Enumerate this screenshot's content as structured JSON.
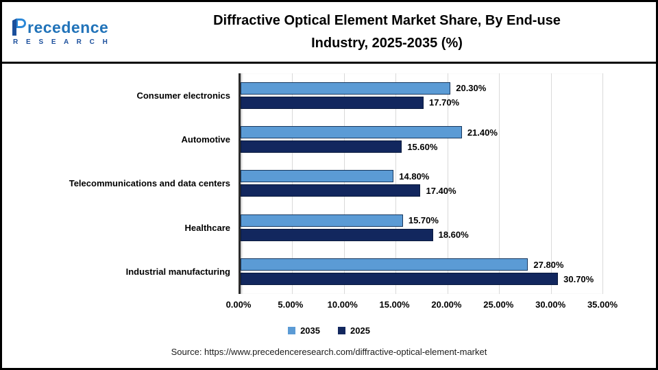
{
  "logo": {
    "brand_rest": "recedence",
    "subtext": "R E S E A R C H"
  },
  "header": {
    "title_line1": "Diffractive Optical Element Market Share, By End-use",
    "title_line2": "Industry, 2025-2035 (%)"
  },
  "chart_data": {
    "type": "bar",
    "orientation": "horizontal",
    "title": "Diffractive Optical Element Market Share, By End-use Industry, 2025-2035 (%)",
    "categories": [
      "Consumer electronics",
      "Automotive",
      "Telecommunications and data centers",
      "Healthcare",
      "Industrial manufacturing"
    ],
    "series": [
      {
        "name": "2035",
        "color": "#5B9BD5",
        "border": "#17375E",
        "values": [
          20.3,
          21.4,
          14.8,
          15.7,
          27.8
        ]
      },
      {
        "name": "2025",
        "color": "#12275E",
        "border": "#0A1A3D",
        "values": [
          17.7,
          15.6,
          17.4,
          18.6,
          30.7
        ]
      }
    ],
    "xlim": [
      0,
      35
    ],
    "tick_labels": [
      "0.00%",
      "5.00%",
      "10.00%",
      "15.00%",
      "20.00%",
      "25.00%",
      "30.00%",
      "35.00%"
    ],
    "grid": true,
    "legend_position": "bottom"
  },
  "footer": {
    "source": "Source: https://www.precedenceresearch.com/diffractive-optical-element-market"
  }
}
